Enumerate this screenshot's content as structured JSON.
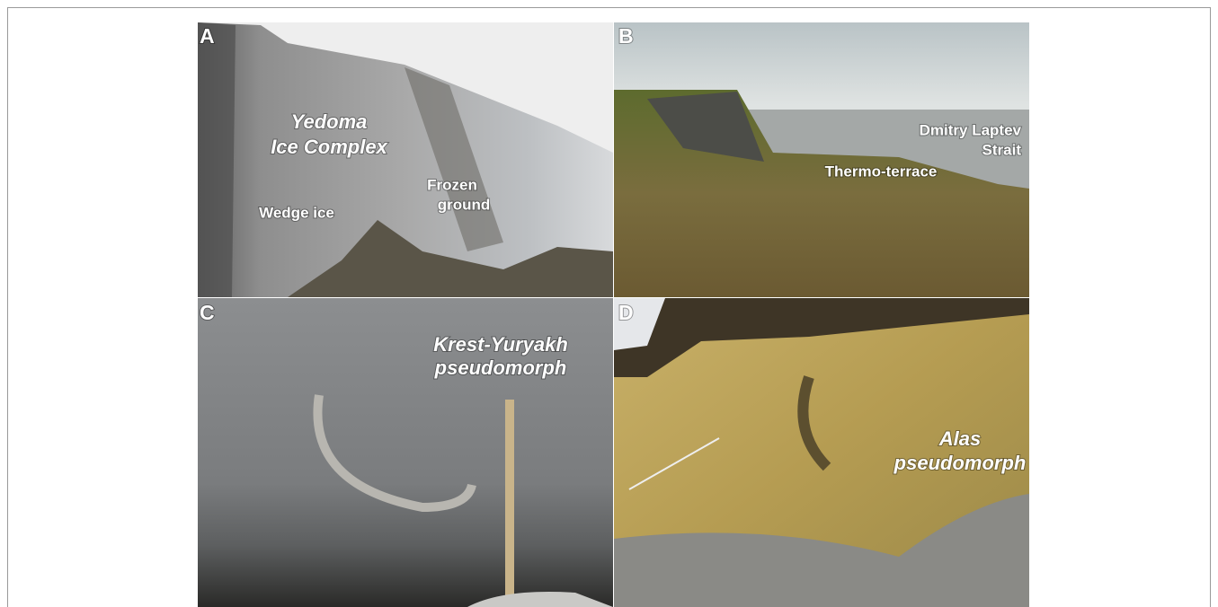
{
  "panels": [
    {
      "letter": "A",
      "labels": [
        {
          "lines": [
            "Yedoma",
            "Ice Complex"
          ]
        },
        {
          "lines": [
            "Wedge ice"
          ]
        },
        {
          "lines": [
            "Frozen",
            "ground"
          ]
        }
      ]
    },
    {
      "letter": "B",
      "labels": [
        {
          "lines": [
            "Dmitry Laptev",
            "Strait"
          ]
        },
        {
          "lines": [
            "Thermo-terrace"
          ]
        }
      ]
    },
    {
      "letter": "C",
      "labels": [
        {
          "lines": [
            "Krest-Yuryakh",
            "pseudomorph"
          ]
        }
      ]
    },
    {
      "letter": "D",
      "labels": [
        {
          "lines": [
            "Alas",
            "pseudomorph"
          ]
        }
      ]
    }
  ]
}
